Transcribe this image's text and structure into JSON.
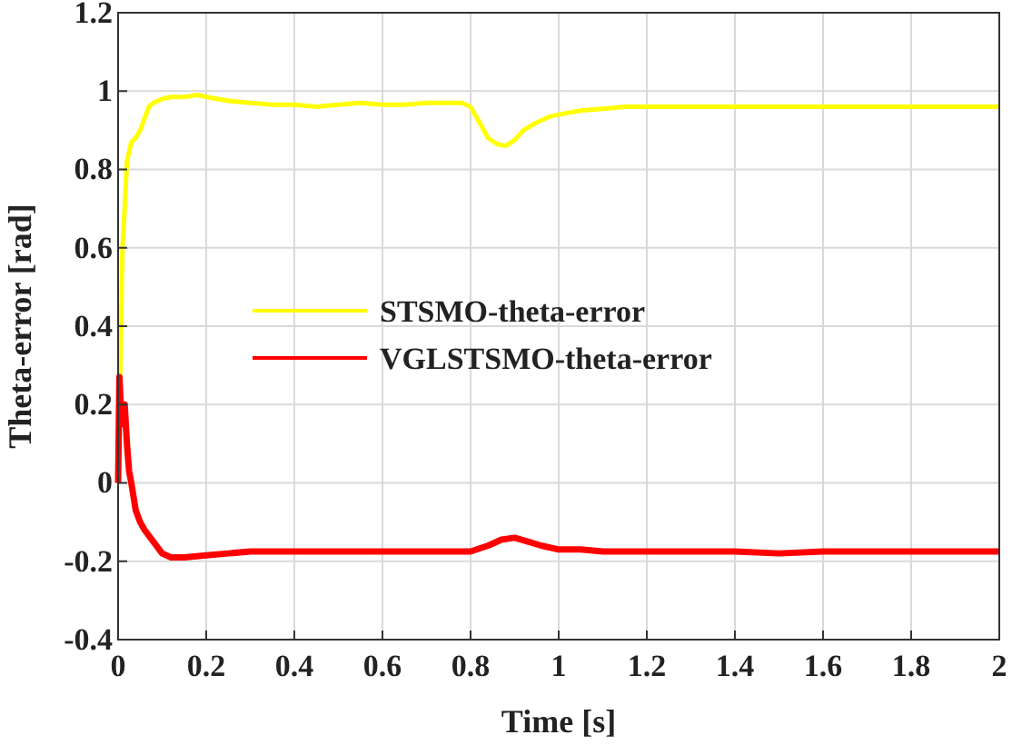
{
  "chart_data": {
    "type": "line",
    "xlabel": "Time [s]",
    "ylabel": "Theta-error [rad]",
    "xlim": [
      0,
      2
    ],
    "ylim": [
      -0.4,
      1.2
    ],
    "xticks": [
      0,
      0.2,
      0.4,
      0.6,
      0.8,
      1,
      1.2,
      1.4,
      1.6,
      1.8,
      2
    ],
    "yticks": [
      -0.4,
      -0.2,
      0,
      0.2,
      0.4,
      0.6,
      0.8,
      1,
      1.2
    ],
    "grid": true,
    "legend": "center",
    "line_style": "solid",
    "series": [
      {
        "name": "STSMO-theta-error",
        "color": "#ffff00",
        "x": [
          0,
          0.005,
          0.01,
          0.015,
          0.02,
          0.03,
          0.04,
          0.05,
          0.06,
          0.07,
          0.08,
          0.1,
          0.12,
          0.15,
          0.18,
          0.2,
          0.25,
          0.3,
          0.35,
          0.4,
          0.45,
          0.5,
          0.55,
          0.6,
          0.65,
          0.7,
          0.75,
          0.78,
          0.8,
          0.82,
          0.84,
          0.86,
          0.88,
          0.9,
          0.92,
          0.95,
          0.98,
          1.0,
          1.05,
          1.1,
          1.15,
          1.2,
          1.3,
          1.4,
          1.5,
          1.6,
          1.7,
          1.8,
          1.9,
          2.0
        ],
        "values": [
          0,
          0.3,
          0.6,
          0.7,
          0.82,
          0.87,
          0.88,
          0.9,
          0.93,
          0.96,
          0.97,
          0.98,
          0.985,
          0.985,
          0.99,
          0.985,
          0.975,
          0.97,
          0.965,
          0.965,
          0.96,
          0.965,
          0.97,
          0.965,
          0.965,
          0.97,
          0.97,
          0.97,
          0.96,
          0.92,
          0.88,
          0.865,
          0.86,
          0.875,
          0.9,
          0.92,
          0.935,
          0.94,
          0.95,
          0.955,
          0.96,
          0.96,
          0.96,
          0.96,
          0.96,
          0.96,
          0.96,
          0.96,
          0.96,
          0.96
        ]
      },
      {
        "name": "VGLSTSMO-theta-error",
        "color": "#ff0000",
        "x": [
          0,
          0.003,
          0.006,
          0.01,
          0.015,
          0.02,
          0.025,
          0.03,
          0.04,
          0.05,
          0.06,
          0.08,
          0.1,
          0.12,
          0.15,
          0.2,
          0.25,
          0.3,
          0.35,
          0.4,
          0.45,
          0.5,
          0.55,
          0.6,
          0.65,
          0.7,
          0.75,
          0.8,
          0.84,
          0.87,
          0.9,
          0.93,
          0.96,
          1.0,
          1.05,
          1.1,
          1.2,
          1.3,
          1.4,
          1.5,
          1.6,
          1.7,
          1.8,
          1.9,
          2.0
        ],
        "values": [
          0,
          0.27,
          0.2,
          0.15,
          0.2,
          0.1,
          0.03,
          0,
          -0.07,
          -0.1,
          -0.12,
          -0.15,
          -0.18,
          -0.19,
          -0.19,
          -0.185,
          -0.18,
          -0.175,
          -0.175,
          -0.175,
          -0.175,
          -0.175,
          -0.175,
          -0.175,
          -0.175,
          -0.175,
          -0.175,
          -0.175,
          -0.16,
          -0.145,
          -0.14,
          -0.15,
          -0.16,
          -0.17,
          -0.17,
          -0.175,
          -0.175,
          -0.175,
          -0.175,
          -0.18,
          -0.175,
          -0.175,
          -0.175,
          -0.175,
          -0.175
        ]
      }
    ]
  }
}
